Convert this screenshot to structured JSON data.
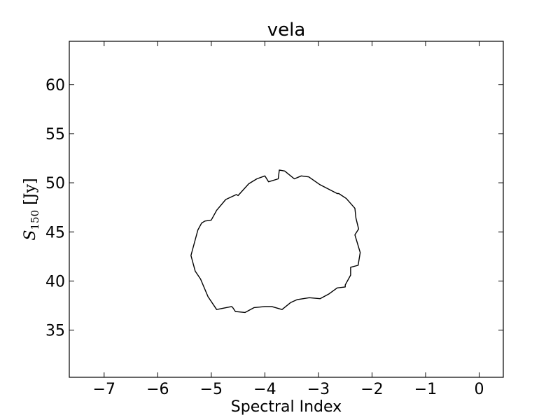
{
  "chart_data": {
    "type": "line",
    "title": "vela",
    "xlabel": "Spectral Index",
    "ylabel": {
      "base": "S",
      "subscript": "150",
      "unit": " [Jy]"
    },
    "xlim": [
      -7.65,
      0.45
    ],
    "ylim": [
      30.2,
      64.4
    ],
    "grid": false,
    "legend": "none",
    "xticks": [
      -7,
      -6,
      -5,
      -4,
      -3,
      -2,
      -1,
      0
    ],
    "xtick_labels": [
      "−7",
      "−6",
      "−5",
      "−4",
      "−3",
      "−2",
      "−1",
      "0"
    ],
    "yticks": [
      35,
      40,
      45,
      50,
      55,
      60
    ],
    "ytick_labels": [
      "35",
      "40",
      "45",
      "50",
      "55",
      "60"
    ],
    "series": [
      {
        "color": "#000000",
        "x": [
          -3.73,
          -3.63,
          -3.45,
          -3.32,
          -3.18,
          -2.97,
          -2.65,
          -2.62,
          -2.48,
          -2.32,
          -2.3,
          -2.25,
          -2.32,
          -2.22,
          -2.26,
          -2.4,
          -2.4,
          -2.5,
          -2.5,
          -2.65,
          -2.8,
          -2.97,
          -3.17,
          -3.4,
          -3.52,
          -3.68,
          -3.87,
          -4.0,
          -4.2,
          -4.37,
          -4.55,
          -4.6,
          -4.62,
          -4.9,
          -5.06,
          -5.2,
          -5.3,
          -5.38,
          -5.3,
          -5.25,
          -5.18,
          -5.12,
          -5.0,
          -4.9,
          -4.73,
          -4.53,
          -4.5,
          -4.3,
          -4.15,
          -4.0,
          -3.93,
          -3.75
        ],
        "y": [
          51.3,
          51.2,
          50.4,
          50.7,
          50.6,
          49.8,
          48.9,
          48.9,
          48.4,
          47.4,
          46.4,
          45.3,
          44.7,
          42.9,
          41.6,
          41.4,
          40.6,
          39.6,
          39.4,
          39.3,
          38.7,
          38.2,
          38.3,
          38.1,
          37.8,
          37.1,
          37.4,
          37.4,
          37.3,
          36.8,
          36.9,
          37.3,
          37.4,
          37.1,
          38.4,
          40.2,
          41.0,
          42.6,
          44.2,
          45.2,
          45.9,
          46.1,
          46.2,
          47.2,
          48.3,
          48.8,
          48.7,
          49.9,
          50.4,
          50.7,
          50.1,
          50.4
        ]
      }
    ]
  }
}
